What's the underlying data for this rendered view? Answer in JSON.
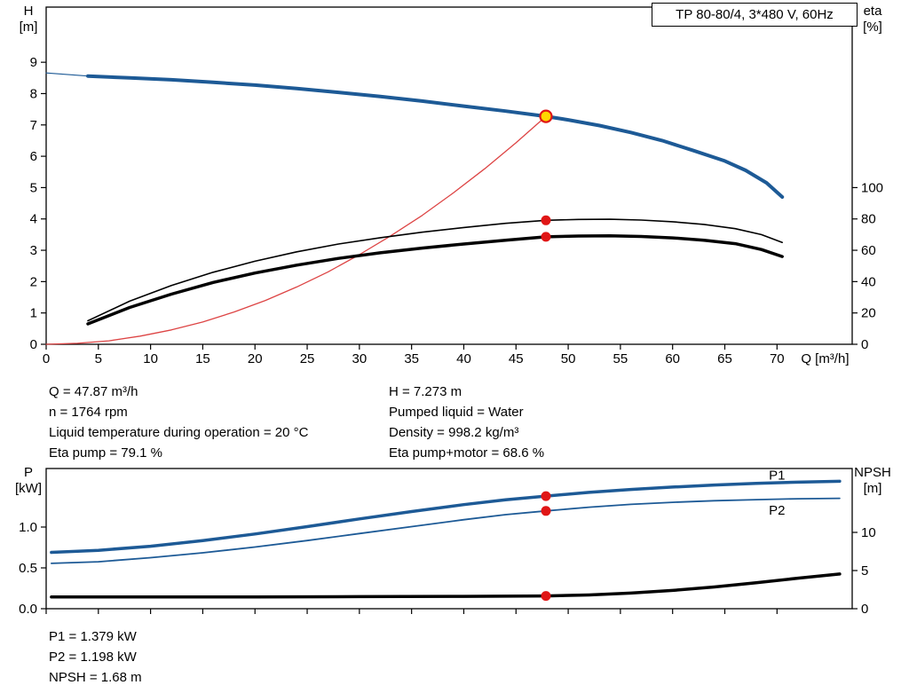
{
  "info_top": {
    "left": [
      "Q = 47.87 m³/h",
      "n = 1764 rpm",
      "Liquid temperature during operation = 20 °C",
      "Eta pump = 79.1 %"
    ],
    "right": [
      "H = 7.273 m",
      "Pumped liquid = Water",
      "Density = 998.2 kg/m³",
      "Eta pump+motor = 68.6 %"
    ]
  },
  "info_bottom": [
    "P1 = 1.379 kW",
    "P2 = 1.198 kW",
    "NPSH = 1.68 m"
  ],
  "colors": {
    "curve_blue": "#1d5a96",
    "curve_black": "#000000",
    "system_red": "#dd4444",
    "marker_red": "#e01616",
    "marker_yellow": "#ffd700"
  },
  "chart_data": [
    {
      "id": "hq-eta",
      "type": "line",
      "title": "TP 80-80/4, 3*480 V, 60Hz",
      "x_axis": {
        "label": "Q [m³/h]",
        "range": [
          0,
          77.2
        ],
        "ticks": [
          0,
          5,
          10,
          15,
          20,
          25,
          30,
          35,
          40,
          45,
          50,
          55,
          60,
          65,
          70
        ],
        "tick_labels": [
          "0",
          "5",
          "10",
          "15",
          "20",
          "25",
          "30",
          "35",
          "40",
          "45",
          "50",
          "55",
          "60",
          "65",
          "70"
        ],
        "show_tick_labels": true
      },
      "left_axis": {
        "name": "H",
        "unit": "[m]",
        "range": [
          0,
          10.76
        ],
        "ticks": [
          0,
          1,
          2,
          3,
          4,
          5,
          6,
          7,
          8,
          9
        ],
        "tick_labels": [
          "0",
          "1",
          "2",
          "3",
          "4",
          "5",
          "6",
          "7",
          "8",
          "9"
        ]
      },
      "right_axis": {
        "name": "eta",
        "unit": "[%]",
        "range": [
          0,
          215.2
        ],
        "ticks": [
          0,
          20,
          40,
          60,
          80,
          100
        ],
        "tick_labels": [
          "0",
          "20",
          "40",
          "60",
          "80",
          "100"
        ]
      },
      "series": [
        {
          "name": "head-curve-extrapolated",
          "axis": "left",
          "color": "#1d5a96",
          "width": 1.2,
          "points": [
            [
              0,
              8.66
            ],
            [
              4,
              8.56
            ]
          ]
        },
        {
          "name": "head-curve",
          "axis": "left",
          "color": "#1d5a96",
          "width": 4,
          "points": [
            [
              4,
              8.56
            ],
            [
              8,
              8.5
            ],
            [
              12,
              8.44
            ],
            [
              16,
              8.36
            ],
            [
              20,
              8.27
            ],
            [
              24,
              8.16
            ],
            [
              28,
              8.04
            ],
            [
              32,
              7.91
            ],
            [
              36,
              7.76
            ],
            [
              40,
              7.6
            ],
            [
              44,
              7.44
            ],
            [
              47.87,
              7.273
            ],
            [
              50,
              7.16
            ],
            [
              53,
              6.98
            ],
            [
              56,
              6.76
            ],
            [
              59,
              6.5
            ],
            [
              62,
              6.18
            ],
            [
              65,
              5.85
            ],
            [
              67,
              5.55
            ],
            [
              69,
              5.15
            ],
            [
              70.5,
              4.7
            ]
          ]
        },
        {
          "name": "system-curve",
          "axis": "left",
          "color": "#dd4444",
          "width": 1.3,
          "points": [
            [
              0,
              0
            ],
            [
              3,
              0.03
            ],
            [
              6,
              0.11
            ],
            [
              9,
              0.26
            ],
            [
              12,
              0.46
            ],
            [
              15,
              0.71
            ],
            [
              18,
              1.03
            ],
            [
              21,
              1.4
            ],
            [
              24,
              1.83
            ],
            [
              27,
              2.31
            ],
            [
              30,
              2.86
            ],
            [
              33,
              3.46
            ],
            [
              36,
              4.11
            ],
            [
              39,
              4.83
            ],
            [
              42,
              5.6
            ],
            [
              45,
              6.43
            ],
            [
              47.87,
              7.273
            ]
          ]
        },
        {
          "name": "eta-pump-curve",
          "axis": "right",
          "color": "#000000",
          "width": 1.6,
          "points": [
            [
              4,
              15
            ],
            [
              8,
              27.5
            ],
            [
              12,
              37.5
            ],
            [
              16,
              46
            ],
            [
              20,
              53
            ],
            [
              24,
              59
            ],
            [
              28,
              64
            ],
            [
              32,
              68
            ],
            [
              36,
              71.5
            ],
            [
              40,
              74.5
            ],
            [
              44,
              77.2
            ],
            [
              47.87,
              79.1
            ],
            [
              51,
              79.7
            ],
            [
              54,
              79.8
            ],
            [
              57,
              79.3
            ],
            [
              60,
              78.2
            ],
            [
              63,
              76.5
            ],
            [
              66,
              73.8
            ],
            [
              68.5,
              70
            ],
            [
              70.5,
              65
            ]
          ]
        },
        {
          "name": "eta-pump-motor-curve",
          "axis": "right",
          "color": "#000000",
          "width": 3.5,
          "points": [
            [
              4,
              13
            ],
            [
              8,
              23.5
            ],
            [
              12,
              32
            ],
            [
              16,
              39.5
            ],
            [
              20,
              45.5
            ],
            [
              24,
              50.5
            ],
            [
              28,
              54.8
            ],
            [
              32,
              58.4
            ],
            [
              36,
              61.4
            ],
            [
              40,
              64
            ],
            [
              44,
              66.4
            ],
            [
              47.87,
              68.6
            ],
            [
              51,
              69.1
            ],
            [
              54,
              69.2
            ],
            [
              57,
              68.8
            ],
            [
              60,
              67.9
            ],
            [
              63,
              66.4
            ],
            [
              66,
              64.2
            ],
            [
              68.5,
              60.5
            ],
            [
              70.5,
              56
            ]
          ]
        }
      ],
      "markers": [
        {
          "name": "duty-point",
          "axis": "left",
          "x": 47.87,
          "y": 7.273,
          "r": 6.5,
          "fill": "#ffd700",
          "stroke": "#e01616"
        },
        {
          "name": "eta-pump-point",
          "axis": "right",
          "x": 47.87,
          "y": 79.1,
          "r": 5.5,
          "fill": "#e01616"
        },
        {
          "name": "eta-pump-motor-point",
          "axis": "right",
          "x": 47.87,
          "y": 68.6,
          "r": 5.5,
          "fill": "#e01616"
        }
      ],
      "annotations": []
    },
    {
      "id": "power-npsh",
      "type": "line",
      "title": "",
      "x_axis": {
        "label": "",
        "range": [
          0,
          77.2
        ],
        "ticks": [
          0,
          5,
          10,
          15,
          20,
          25,
          30,
          35,
          40,
          45,
          50,
          55,
          60,
          65,
          70
        ],
        "tick_labels": [
          "0",
          "5",
          "10",
          "15",
          "20",
          "25",
          "30",
          "35",
          "40",
          "45",
          "50",
          "55",
          "60",
          "65",
          "70"
        ],
        "show_tick_labels": false
      },
      "left_axis": {
        "name": "P",
        "unit": "[kW]",
        "range": [
          0,
          1.717
        ],
        "ticks": [
          0,
          0.5,
          1.0
        ],
        "tick_labels": [
          "0.0",
          "0.5",
          "1.0"
        ]
      },
      "right_axis": {
        "name": "NPSH",
        "unit": "[m]",
        "range": [
          0,
          18.37
        ],
        "ticks": [
          0,
          5,
          10
        ],
        "tick_labels": [
          "0",
          "5",
          "10"
        ]
      },
      "series": [
        {
          "name": "p1-curve",
          "axis": "left",
          "color": "#1d5a96",
          "width": 3.5,
          "points": [
            [
              0.5,
              0.69
            ],
            [
              5,
              0.715
            ],
            [
              10,
              0.765
            ],
            [
              15,
              0.835
            ],
            [
              20,
              0.915
            ],
            [
              25,
              1.005
            ],
            [
              30,
              1.1
            ],
            [
              35,
              1.19
            ],
            [
              40,
              1.275
            ],
            [
              44,
              1.335
            ],
            [
              47.87,
              1.379
            ],
            [
              52,
              1.425
            ],
            [
              56,
              1.46
            ],
            [
              60,
              1.49
            ],
            [
              64,
              1.515
            ],
            [
              68,
              1.535
            ],
            [
              72,
              1.55
            ],
            [
              76,
              1.56
            ]
          ]
        },
        {
          "name": "p2-curve",
          "axis": "left",
          "color": "#1d5a96",
          "width": 1.8,
          "points": [
            [
              0.5,
              0.555
            ],
            [
              5,
              0.575
            ],
            [
              10,
              0.625
            ],
            [
              15,
              0.685
            ],
            [
              20,
              0.755
            ],
            [
              25,
              0.835
            ],
            [
              30,
              0.92
            ],
            [
              35,
              1.005
            ],
            [
              40,
              1.09
            ],
            [
              44,
              1.152
            ],
            [
              47.87,
              1.198
            ],
            [
              52,
              1.243
            ],
            [
              56,
              1.278
            ],
            [
              60,
              1.303
            ],
            [
              64,
              1.322
            ],
            [
              68,
              1.336
            ],
            [
              72,
              1.346
            ],
            [
              76,
              1.352
            ]
          ]
        },
        {
          "name": "npsh-curve",
          "axis": "right",
          "color": "#000000",
          "width": 3.5,
          "points": [
            [
              0.5,
              1.55
            ],
            [
              10,
              1.55
            ],
            [
              20,
              1.55
            ],
            [
              30,
              1.58
            ],
            [
              40,
              1.62
            ],
            [
              47.87,
              1.68
            ],
            [
              52,
              1.8
            ],
            [
              56,
              2.05
            ],
            [
              60,
              2.4
            ],
            [
              64,
              2.85
            ],
            [
              68,
              3.4
            ],
            [
              72,
              4.0
            ],
            [
              76,
              4.55
            ]
          ]
        }
      ],
      "markers": [
        {
          "name": "p1-point",
          "axis": "left",
          "x": 47.87,
          "y": 1.379,
          "r": 5.5,
          "fill": "#e01616"
        },
        {
          "name": "p2-point",
          "axis": "left",
          "x": 47.87,
          "y": 1.198,
          "r": 5.5,
          "fill": "#e01616"
        },
        {
          "name": "npsh-point",
          "axis": "right",
          "x": 47.87,
          "y": 1.68,
          "r": 5.5,
          "fill": "#e01616"
        }
      ],
      "annotations": [
        {
          "name": "p1-label",
          "text": "P1",
          "axis": "left",
          "x": 70,
          "y": 1.58,
          "color": "#1d5a96"
        },
        {
          "name": "p2-label",
          "text": "P2",
          "axis": "left",
          "x": 70,
          "y": 1.15,
          "color": "#1d5a96"
        }
      ]
    }
  ]
}
